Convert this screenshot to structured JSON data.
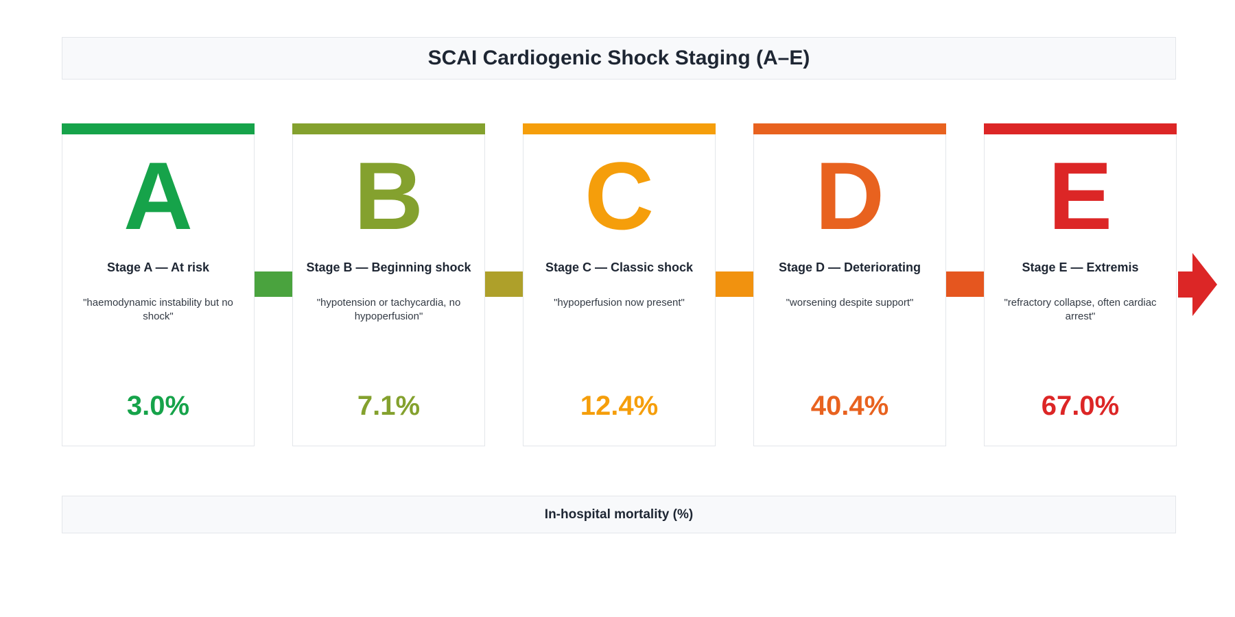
{
  "title": "SCAI Cardiogenic Shock Staging (A–E)",
  "footer_label": "In-hospital mortality (%)",
  "stages": [
    {
      "letter": "A",
      "name": "Stage A — At risk",
      "description": "\"haemodynamic instability but no shock\"",
      "mortality": "3.0%",
      "color": "#16a34a"
    },
    {
      "letter": "B",
      "name": "Stage B — Beginning shock",
      "description": "\"hypotension or tachycardia, no hypoperfusion\"",
      "mortality": "7.1%",
      "color": "#84a12e"
    },
    {
      "letter": "C",
      "name": "Stage C — Classic shock",
      "description": "\"hypoperfusion now present\"",
      "mortality": "12.4%",
      "color": "#f59e0b"
    },
    {
      "letter": "D",
      "name": "Stage D — Deteriorating",
      "description": "\"worsening despite support\"",
      "mortality": "40.4%",
      "color": "#e8621f"
    },
    {
      "letter": "E",
      "name": "Stage E — Extremis",
      "description": "\"refractory collapse, often cardiac arrest\"",
      "mortality": "67.0%",
      "color": "#dc2626"
    }
  ],
  "connector_colors": [
    "#4aa33e",
    "#aea02a",
    "#f1920f",
    "#e5561f"
  ],
  "arrow_color": "#dc2626"
}
